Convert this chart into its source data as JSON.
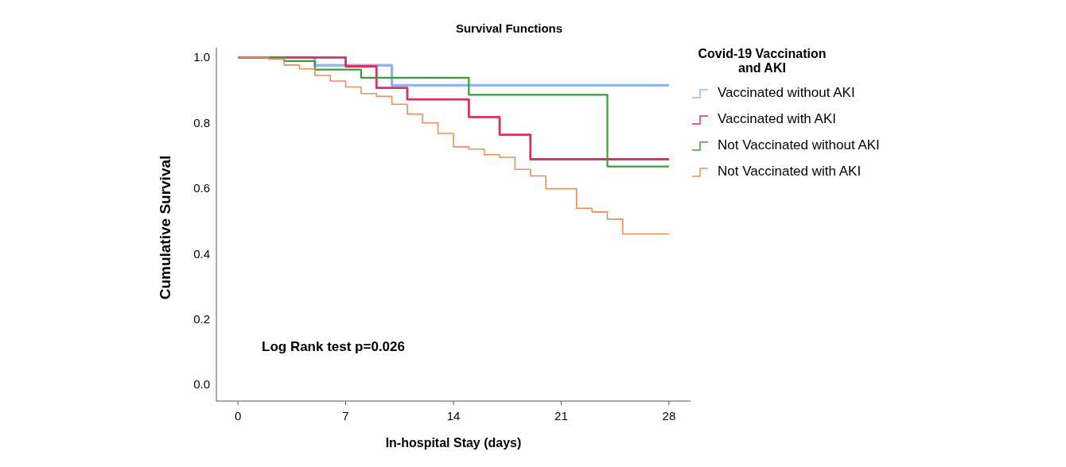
{
  "chart_data": {
    "type": "step",
    "title": "Survival Functions",
    "xlabel": "In-hospital Stay (days)",
    "ylabel": "Cumulative Survival",
    "legend_title": "Covid-19 Vaccination\nand AKI",
    "xlim": [
      -1.4,
      29.4
    ],
    "xticks": [
      0,
      7,
      14,
      21,
      28
    ],
    "ylim": [
      -0.05,
      1.03
    ],
    "yticks": [
      {
        "value": 0,
        "label": "0.0"
      },
      {
        "value": 0.2,
        "label": "0.2"
      },
      {
        "value": 0.4,
        "label": "0.4"
      },
      {
        "value": 0.6,
        "label": "0.6"
      },
      {
        "value": 0.8,
        "label": "0.8"
      },
      {
        "value": 1,
        "label": "1.0"
      }
    ],
    "legend": "right",
    "grid": false,
    "annotations": [
      "Log Rank test p=0.026"
    ],
    "series": [
      {
        "name": "Vaccinated without AKI",
        "color": "#8fb4f0",
        "x": [
          0,
          5,
          10,
          28
        ],
        "values": [
          1.0,
          0.976,
          0.915,
          0.915
        ]
      },
      {
        "name": "Vaccinated with AKI",
        "color": "#d9305f",
        "x": [
          0,
          7,
          9,
          11,
          15,
          17,
          19,
          28
        ],
        "values": [
          1.0,
          0.973,
          0.907,
          0.872,
          0.818,
          0.764,
          0.689,
          0.689
        ]
      },
      {
        "name": "Not Vaccinated without AKI",
        "color": "#3d9a3d",
        "x": [
          0,
          3,
          5,
          8,
          15,
          24,
          28
        ],
        "values": [
          1.0,
          0.989,
          0.963,
          0.938,
          0.886,
          0.667,
          0.667
        ]
      },
      {
        "name": "Not Vaccinated with AKI",
        "color": "#f58a55",
        "x": [
          0,
          2,
          3,
          4,
          5,
          6,
          7,
          8,
          9,
          10,
          11,
          12,
          13,
          14,
          15,
          16,
          17,
          18,
          19,
          20,
          22,
          23,
          24,
          25,
          28
        ],
        "values": [
          1.0,
          0.995,
          0.977,
          0.965,
          0.945,
          0.928,
          0.91,
          0.89,
          0.881,
          0.857,
          0.827,
          0.8,
          0.768,
          0.727,
          0.72,
          0.703,
          0.695,
          0.658,
          0.638,
          0.599,
          0.539,
          0.528,
          0.506,
          0.461,
          0.461
        ]
      }
    ]
  }
}
